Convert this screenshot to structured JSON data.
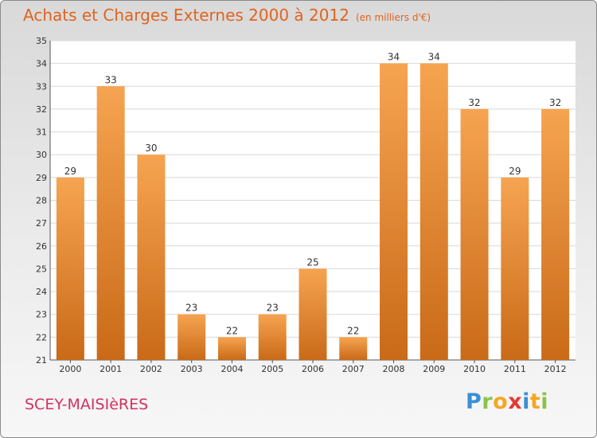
{
  "header": {
    "title": "Achats et Charges Externes 2000 à 2012",
    "subtitle": "(en milliers d'€)"
  },
  "footer": {
    "commune": "SCEY-MAISIèRES",
    "brand_letters": [
      {
        "char": "P",
        "color": "#3a8fd6"
      },
      {
        "char": "r",
        "color": "#8bc34a"
      },
      {
        "char": "o",
        "color": "#f5a623"
      },
      {
        "char": "x",
        "color": "#e53935"
      },
      {
        "char": "i",
        "color": "#3a8fd6"
      },
      {
        "char": "t",
        "color": "#f5a623"
      },
      {
        "char": "i",
        "color": "#8bc34a"
      }
    ]
  },
  "colors": {
    "title": "#e0641e",
    "commune": "#d0325f",
    "bar_light": "#f6a451",
    "bar_dark": "#c96a18"
  },
  "chart_data": {
    "type": "bar",
    "title": "Achats et Charges Externes 2000 à 2012",
    "subtitle": "(en milliers d'€)",
    "categories": [
      "2000",
      "2001",
      "2002",
      "2003",
      "2004",
      "2005",
      "2006",
      "2007",
      "2008",
      "2009",
      "2010",
      "2011",
      "2012"
    ],
    "values": [
      29,
      33,
      30,
      23,
      22,
      23,
      25,
      22,
      34,
      34,
      32,
      29,
      32
    ],
    "ylim": [
      21,
      35
    ],
    "yticks": [
      21,
      22,
      23,
      24,
      25,
      26,
      27,
      28,
      29,
      30,
      31,
      32,
      33,
      34,
      35
    ],
    "grid": true,
    "xlabel": "",
    "ylabel": ""
  }
}
